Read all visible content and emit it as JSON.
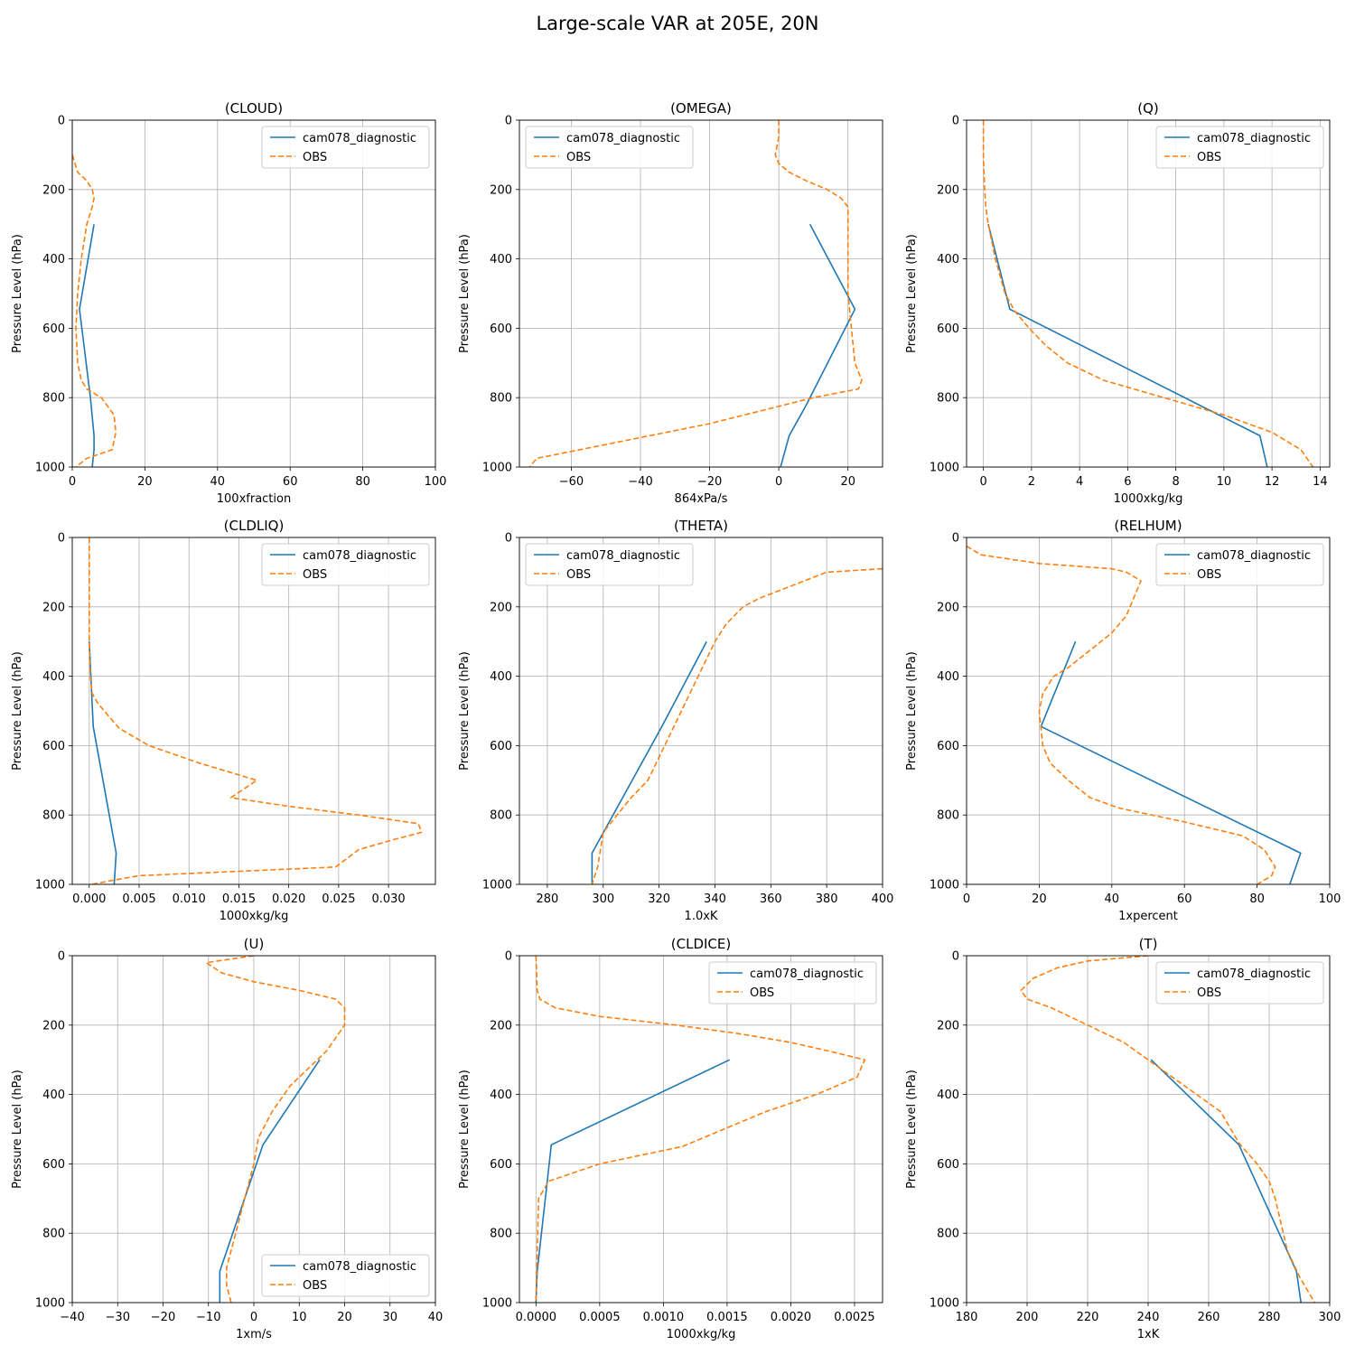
{
  "figure": {
    "title": "Large-scale VAR at 205E, 20N"
  },
  "style": {
    "model_color": "#1f77b4",
    "obs_color": "#ff7f0e",
    "grid_color": "#b0b0b0"
  },
  "chart_data": [
    {
      "type": "line",
      "title": "(CLOUD)",
      "xlabel": "100xfraction",
      "ylabel": "Pressure Level (hPa)",
      "xlim": [
        0,
        100
      ],
      "ylim": [
        1000,
        0
      ],
      "y_inverted": true,
      "xticks": [
        0,
        20,
        40,
        60,
        80,
        100
      ],
      "xtick_labels": [
        "0",
        "20",
        "40",
        "60",
        "80",
        "100"
      ],
      "yticks": [
        0,
        200,
        400,
        600,
        800,
        1000
      ],
      "ytick_labels": [
        "0",
        "200",
        "400",
        "600",
        "800",
        "1000"
      ],
      "grid": true,
      "legend": "top-right",
      "series": [
        {
          "name": "cam078_diagnostic",
          "style": "solid",
          "x": [
            6.0,
            2.0,
            5.0,
            6.0,
            6.0,
            5.5
          ],
          "y": [
            300,
            545,
            800,
            910,
            950,
            1000
          ]
        },
        {
          "name": "OBS",
          "style": "dashed",
          "x": [
            0,
            1.5,
            4.0,
            5.5,
            6.0,
            5.5,
            4.0,
            2.5,
            1.5,
            1.0,
            1.5,
            2.5,
            4.0,
            8.0,
            11.5,
            12.0,
            11.0,
            4.0,
            1.0
          ],
          "y": [
            100,
            150,
            175,
            200,
            225,
            250,
            300,
            400,
            500,
            600,
            700,
            750,
            775,
            800,
            850,
            900,
            950,
            975,
            1000
          ]
        }
      ]
    },
    {
      "type": "line",
      "title": "(OMEGA)",
      "xlabel": "864xPa/s",
      "ylabel": "Pressure Level (hPa)",
      "xlim": [
        -75,
        30
      ],
      "ylim": [
        1000,
        0
      ],
      "y_inverted": true,
      "xticks": [
        -60,
        -40,
        -20,
        0,
        20
      ],
      "xtick_labels": [
        "−60",
        "−40",
        "−20",
        "0",
        "20"
      ],
      "yticks": [
        0,
        200,
        400,
        600,
        800,
        1000
      ],
      "ytick_labels": [
        "0",
        "200",
        "400",
        "600",
        "800",
        "1000"
      ],
      "grid": true,
      "legend": "top-left",
      "series": [
        {
          "name": "cam078_diagnostic",
          "style": "solid",
          "x": [
            9,
            22,
            8,
            3,
            0.5
          ],
          "y": [
            300,
            545,
            820,
            910,
            1000
          ]
        },
        {
          "name": "OBS",
          "style": "dashed",
          "x": [
            0,
            0,
            -1,
            0,
            3,
            8,
            14,
            18,
            20,
            20,
            20,
            21,
            22,
            24,
            23,
            10,
            0,
            -20,
            -45,
            -70,
            -72
          ],
          "y": [
            0,
            50,
            100,
            125,
            150,
            175,
            200,
            225,
            250,
            300,
            500,
            600,
            700,
            750,
            775,
            800,
            825,
            875,
            925,
            975,
            1000
          ]
        }
      ]
    },
    {
      "type": "line",
      "title": "(Q)",
      "xlabel": "1000xkg/kg",
      "ylabel": "Pressure Level (hPa)",
      "xlim": [
        -0.7,
        14.4
      ],
      "ylim": [
        1000,
        0
      ],
      "y_inverted": true,
      "xticks": [
        0,
        2,
        4,
        6,
        8,
        10,
        12,
        14
      ],
      "xtick_labels": [
        "0",
        "2",
        "4",
        "6",
        "8",
        "10",
        "12",
        "14"
      ],
      "yticks": [
        0,
        200,
        400,
        600,
        800,
        1000
      ],
      "ytick_labels": [
        "0",
        "200",
        "400",
        "600",
        "800",
        "1000"
      ],
      "grid": true,
      "legend": "top-right",
      "series": [
        {
          "name": "cam078_diagnostic",
          "style": "solid",
          "x": [
            0.2,
            1.1,
            11.5,
            11.8
          ],
          "y": [
            300,
            545,
            910,
            1000
          ]
        },
        {
          "name": "OBS",
          "style": "dashed",
          "x": [
            0,
            0,
            0.05,
            0.1,
            0.2,
            0.5,
            0.9,
            1.3,
            1.9,
            2.6,
            3.5,
            5.0,
            7.5,
            10.0,
            12.0,
            13.2,
            13.7
          ],
          "y": [
            0,
            100,
            200,
            250,
            300,
            400,
            500,
            550,
            600,
            650,
            700,
            750,
            800,
            850,
            900,
            950,
            1000
          ]
        }
      ]
    },
    {
      "type": "line",
      "title": "(CLDLIQ)",
      "xlabel": "1000xkg/kg",
      "ylabel": "Pressure Level (hPa)",
      "xlim": [
        -0.0017,
        0.0347
      ],
      "ylim": [
        1000,
        0
      ],
      "y_inverted": true,
      "xticks": [
        0,
        0.005,
        0.01,
        0.015,
        0.02,
        0.025,
        0.03
      ],
      "xtick_labels": [
        "0.000",
        "0.005",
        "0.010",
        "0.015",
        "0.020",
        "0.025",
        "0.030"
      ],
      "yticks": [
        0,
        200,
        400,
        600,
        800,
        1000
      ],
      "ytick_labels": [
        "0",
        "200",
        "400",
        "600",
        "800",
        "1000"
      ],
      "grid": true,
      "legend": "top-right",
      "series": [
        {
          "name": "cam078_diagnostic",
          "style": "solid",
          "x": [
            0.0,
            0.0004,
            0.0027,
            0.0025
          ],
          "y": [
            300,
            545,
            910,
            1000
          ]
        },
        {
          "name": "OBS",
          "style": "dashed",
          "x": [
            0,
            0,
            0.0001,
            0.0003,
            0.0008,
            0.0015,
            0.003,
            0.006,
            0.011,
            0.0168,
            0.0142,
            0.02,
            0.027,
            0.033,
            0.0333,
            0.03,
            0.027,
            0.0247,
            0.005,
            0.002,
            0.0003
          ],
          "y": [
            0,
            300,
            400,
            450,
            475,
            500,
            550,
            600,
            650,
            700,
            750,
            775,
            800,
            825,
            850,
            875,
            900,
            950,
            975,
            990,
            1000
          ]
        }
      ]
    },
    {
      "type": "line",
      "title": "(THETA)",
      "xlabel": "1.0xK",
      "ylabel": "Pressure Level (hPa)",
      "xlim": [
        270,
        400
      ],
      "ylim": [
        1000,
        0
      ],
      "y_inverted": true,
      "xticks": [
        280,
        300,
        320,
        340,
        360,
        380,
        400
      ],
      "xtick_labels": [
        "280",
        "300",
        "320",
        "340",
        "360",
        "380",
        "400"
      ],
      "yticks": [
        0,
        200,
        400,
        600,
        800,
        1000
      ],
      "ytick_labels": [
        "0",
        "200",
        "400",
        "600",
        "800",
        "1000"
      ],
      "grid": true,
      "legend": "top-left",
      "series": [
        {
          "name": "cam078_diagnostic",
          "style": "solid",
          "x": [
            337,
            321,
            296,
            296
          ],
          "y": [
            300,
            545,
            910,
            1000
          ]
        },
        {
          "name": "OBS",
          "style": "dashed",
          "x": [
            400,
            380,
            372,
            364,
            356,
            350,
            344,
            340,
            334,
            328,
            322,
            316,
            310,
            305,
            300,
            298,
            296
          ],
          "y": [
            90,
            100,
            125,
            150,
            175,
            200,
            250,
            300,
            400,
            500,
            600,
            700,
            750,
            800,
            850,
            950,
            1000
          ]
        }
      ]
    },
    {
      "type": "line",
      "title": "(RELHUM)",
      "xlabel": "1xpercent",
      "ylabel": "Pressure Level (hPa)",
      "xlim": [
        0,
        100
      ],
      "ylim": [
        1000,
        0
      ],
      "y_inverted": true,
      "xticks": [
        0,
        20,
        40,
        60,
        80,
        100
      ],
      "xtick_labels": [
        "0",
        "20",
        "40",
        "60",
        "80",
        "100"
      ],
      "yticks": [
        0,
        200,
        400,
        600,
        800,
        1000
      ],
      "ytick_labels": [
        "0",
        "200",
        "400",
        "600",
        "800",
        "1000"
      ],
      "grid": true,
      "legend": "top-right",
      "series": [
        {
          "name": "cam078_diagnostic",
          "style": "solid",
          "x": [
            30,
            20.5,
            92,
            89
          ],
          "y": [
            300,
            545,
            910,
            1000
          ]
        },
        {
          "name": "OBS",
          "style": "dashed",
          "x": [
            0,
            4,
            20,
            40,
            44,
            48,
            46,
            44,
            40,
            34,
            28,
            24,
            21,
            20,
            21,
            23,
            28,
            34,
            42,
            60,
            76,
            82,
            85,
            84,
            80
          ],
          "y": [
            25,
            50,
            75,
            90,
            100,
            125,
            175,
            225,
            275,
            325,
            375,
            400,
            450,
            500,
            600,
            650,
            700,
            750,
            780,
            820,
            860,
            900,
            950,
            975,
            1000
          ]
        }
      ]
    },
    {
      "type": "line",
      "title": "(U)",
      "xlabel": "1xm/s",
      "ylabel": "Pressure Level (hPa)",
      "xlim": [
        -40,
        40
      ],
      "ylim": [
        1000,
        0
      ],
      "y_inverted": true,
      "xticks": [
        -40,
        -30,
        -20,
        -10,
        0,
        10,
        20,
        30,
        40
      ],
      "xtick_labels": [
        "−40",
        "−30",
        "−20",
        "−10",
        "0",
        "10",
        "20",
        "30",
        "40"
      ],
      "yticks": [
        0,
        200,
        400,
        600,
        800,
        1000
      ],
      "ytick_labels": [
        "0",
        "200",
        "400",
        "600",
        "800",
        "1000"
      ],
      "grid": true,
      "legend": "bottom-right",
      "series": [
        {
          "name": "cam078_diagnostic",
          "style": "solid",
          "x": [
            14.5,
            2.0,
            -7.5,
            -7.5
          ],
          "y": [
            300,
            545,
            910,
            1000
          ]
        },
        {
          "name": "OBS",
          "style": "dashed",
          "x": [
            0,
            -10.5,
            -7,
            0,
            10,
            18,
            20,
            20,
            16,
            8,
            4,
            1,
            0,
            -2,
            -4,
            -6,
            -6,
            -5
          ],
          "y": [
            0,
            20,
            50,
            75,
            100,
            125,
            150,
            200,
            275,
            375,
            450,
            525,
            600,
            700,
            800,
            900,
            950,
            1000
          ]
        }
      ]
    },
    {
      "type": "line",
      "title": "(CLDICE)",
      "xlabel": "1000xkg/kg",
      "ylabel": "Pressure Level (hPa)",
      "xlim": [
        -0.00013,
        0.00272
      ],
      "ylim": [
        1000,
        0
      ],
      "y_inverted": true,
      "xticks": [
        0,
        0.0005,
        0.001,
        0.0015,
        0.002,
        0.0025
      ],
      "xtick_labels": [
        "0.0000",
        "0.0005",
        "0.0010",
        "0.0015",
        "0.0020",
        "0.0025"
      ],
      "yticks": [
        0,
        200,
        400,
        600,
        800,
        1000
      ],
      "ytick_labels": [
        "0",
        "200",
        "400",
        "600",
        "800",
        "1000"
      ],
      "grid": true,
      "legend": "top-right",
      "series": [
        {
          "name": "cam078_diagnostic",
          "style": "solid",
          "x": [
            0.00152,
            0.00012,
            1e-05,
            0.0
          ],
          "y": [
            300,
            545,
            910,
            1000
          ]
        },
        {
          "name": "OBS",
          "style": "dashed",
          "x": [
            0,
            1e-05,
            3e-05,
            0.00015,
            0.0005,
            0.0011,
            0.0016,
            0.002,
            0.0023,
            0.00258,
            0.00252,
            0.0022,
            0.0018,
            0.00115,
            0.0005,
            0.0001,
            2e-05,
            0.0
          ],
          "y": [
            0,
            100,
            125,
            150,
            175,
            200,
            225,
            250,
            275,
            300,
            350,
            400,
            450,
            550,
            600,
            650,
            700,
            1000
          ]
        }
      ]
    },
    {
      "type": "line",
      "title": "(T)",
      "xlabel": "1xK",
      "ylabel": "Pressure Level (hPa)",
      "xlim": [
        180,
        300
      ],
      "ylim": [
        1000,
        0
      ],
      "y_inverted": true,
      "xticks": [
        180,
        200,
        220,
        240,
        260,
        280,
        300
      ],
      "xtick_labels": [
        "180",
        "200",
        "220",
        "240",
        "260",
        "280",
        "300"
      ],
      "yticks": [
        0,
        200,
        400,
        600,
        800,
        1000
      ],
      "ytick_labels": [
        "0",
        "200",
        "400",
        "600",
        "800",
        "1000"
      ],
      "grid": true,
      "legend": "top-right",
      "series": [
        {
          "name": "cam078_diagnostic",
          "style": "solid",
          "x": [
            241,
            270,
            289,
            290.5
          ],
          "y": [
            300,
            545,
            910,
            1000
          ]
        },
        {
          "name": "OBS",
          "style": "dashed",
          "x": [
            240,
            220,
            210,
            202,
            198,
            200,
            208,
            220,
            232,
            244,
            256,
            264,
            270,
            276,
            280,
            282,
            284,
            286,
            290,
            295
          ],
          "y": [
            0,
            15,
            35,
            65,
            100,
            125,
            150,
            200,
            250,
            325,
            400,
            450,
            540,
            600,
            650,
            700,
            775,
            850,
            925,
            1000
          ]
        }
      ]
    }
  ]
}
